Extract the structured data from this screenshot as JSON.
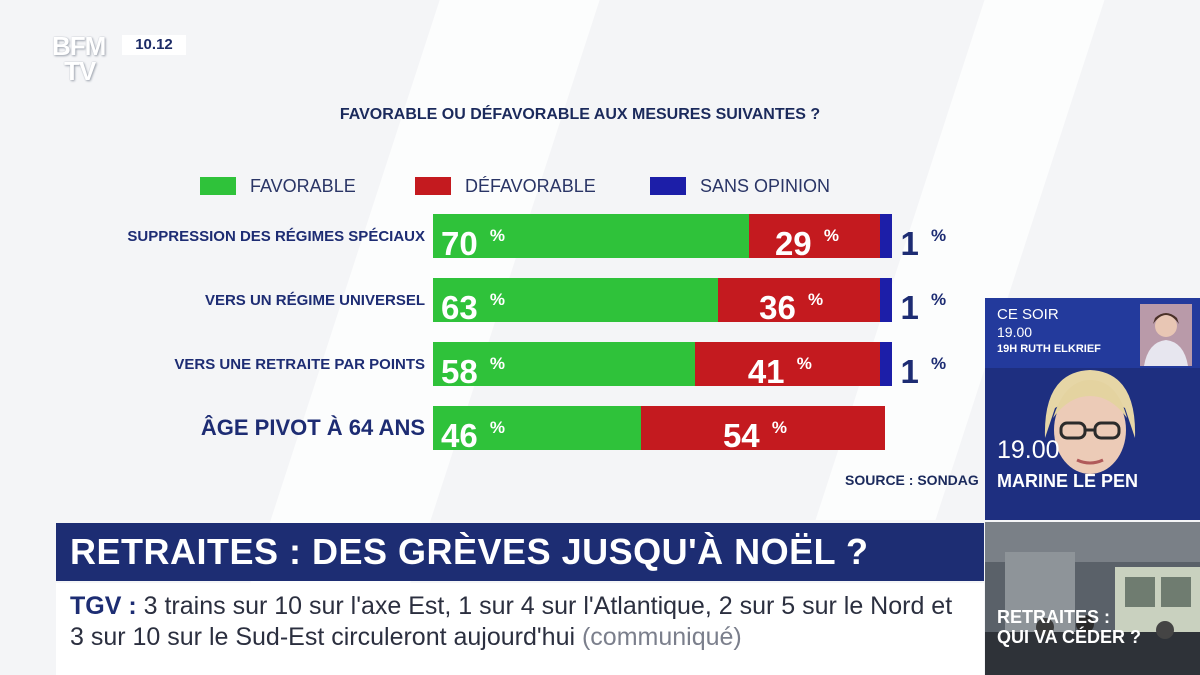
{
  "channel": {
    "logo_line1": "BFM",
    "logo_line2": "TV",
    "clock": "10.12"
  },
  "chart_data": {
    "type": "bar",
    "orientation": "horizontal",
    "stacked": true,
    "title": "FAVORABLE OU DÉFAVORABLE AUX MESURES SUIVANTES ?",
    "legend": [
      {
        "name": "FAVORABLE",
        "color": "#2fc23a"
      },
      {
        "name": "DÉFAVORABLE",
        "color": "#c41a1f"
      },
      {
        "name": "SANS OPINION",
        "color": "#1c1ea8"
      }
    ],
    "categories": [
      "SUPPRESSION DES RÉGIMES SPÉCIAUX",
      "VERS UN RÉGIME UNIVERSEL",
      "VERS UNE RETRAITE PAR POINTS",
      "ÂGE PIVOT À 64 ANS"
    ],
    "series": [
      {
        "name": "FAVORABLE",
        "values": [
          70,
          63,
          58,
          46
        ]
      },
      {
        "name": "DÉFAVORABLE",
        "values": [
          29,
          36,
          41,
          54
        ]
      },
      {
        "name": "SANS OPINION",
        "values": [
          1,
          1,
          1,
          0
        ]
      }
    ],
    "unit": "%",
    "xlim": [
      0,
      100
    ],
    "source": "SOURCE : SONDAG"
  },
  "headline": "RETRAITES : DES GRÈVES JUSQU'À NOËL ?",
  "ticker": {
    "tag": "TGV",
    "separator": ":",
    "text": "3 trains sur 10 sur l'axe Est, 1 sur 4 sur l'Atlantique, 2 sur 5 sur le Nord et 3 sur 10 sur le Sud-Est circuleront aujourd'hui",
    "suffix": "(communiqué)"
  },
  "sidebar": {
    "promo1": {
      "line1": "CE SOIR",
      "line2": "19.00",
      "line3": "19H RUTH ELKRIEF"
    },
    "promo2": {
      "time": "19.00",
      "name": "MARINE LE PEN"
    },
    "promo3": {
      "line1": "RETRAITES :",
      "line2": "QUI VA CÉDER ?"
    }
  }
}
